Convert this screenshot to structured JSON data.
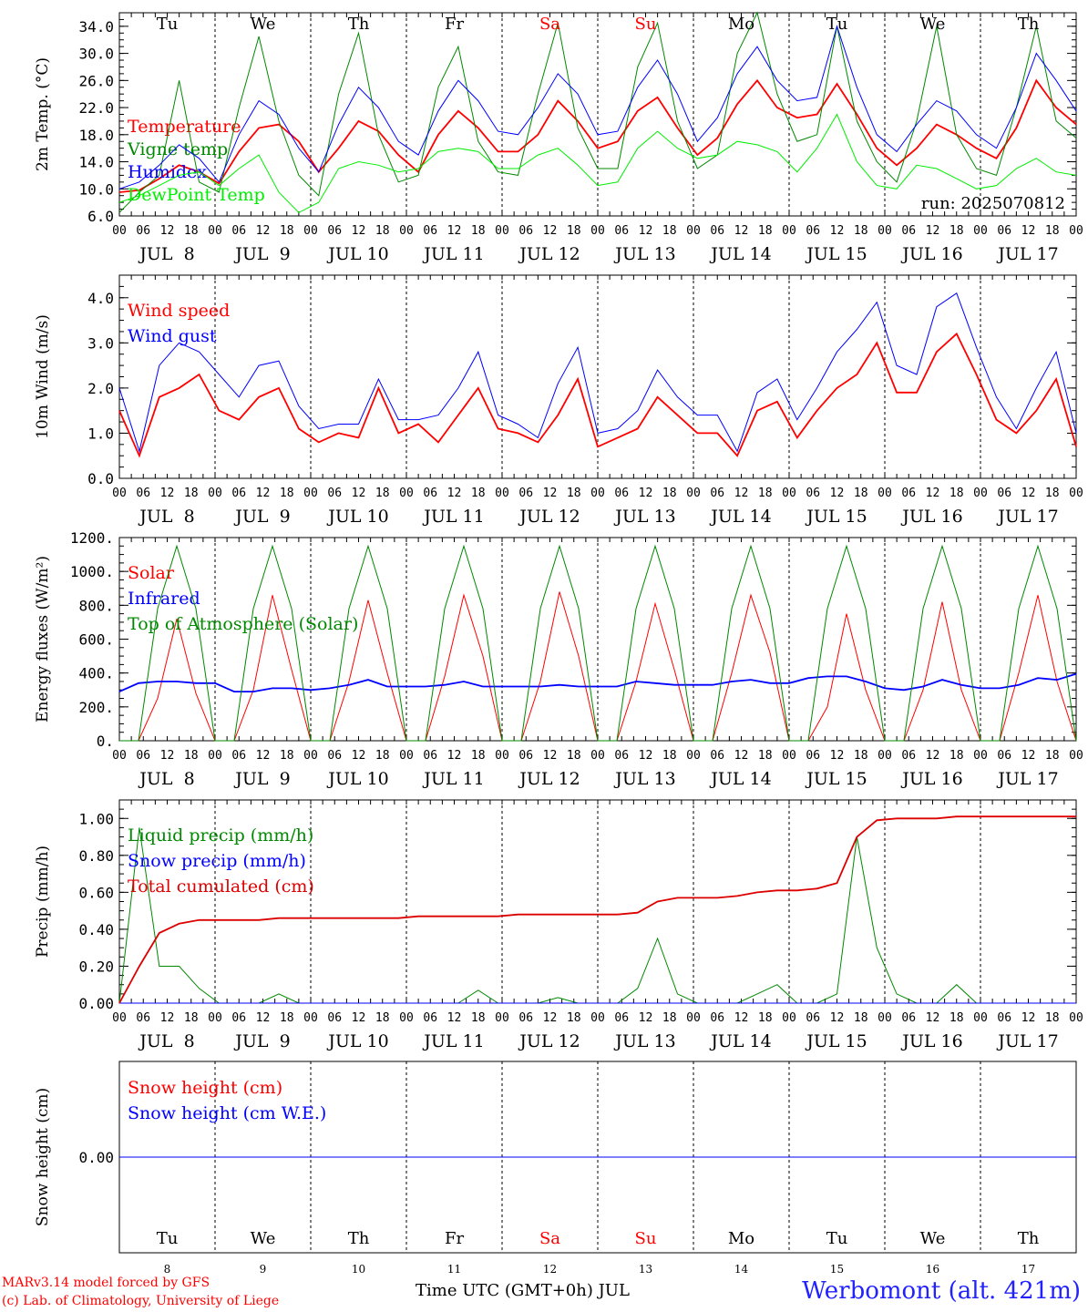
{
  "chart_data": [
    {
      "type": "line",
      "panel": "temperature",
      "ylabel": "2m Temp. (°C)",
      "ylim": [
        6.0,
        36.0
      ],
      "yticks": [
        "6.0",
        "10.0",
        "14.0",
        "18.0",
        "22.0",
        "26.0",
        "30.0",
        "34.0"
      ],
      "run_label": "run: 2025070812",
      "day_labels": [
        "Tu",
        "We",
        "Th",
        "Fr",
        "Sa",
        "Su",
        "Mo",
        "Tu",
        "We",
        "Th"
      ],
      "series": [
        {
          "name": "Temperature",
          "color": "#ff0000",
          "values": [
            9.5,
            9.8,
            11.5,
            13.5,
            12.5,
            10.8,
            15.5,
            19.0,
            19.5,
            17.0,
            12.5,
            16.0,
            20.0,
            18.5,
            15.0,
            12.5,
            18.0,
            21.5,
            19.0,
            15.5,
            15.5,
            18.0,
            23.0,
            20.0,
            16.0,
            17.0,
            21.5,
            23.5,
            19.0,
            15.0,
            17.5,
            22.5,
            26.0,
            22.0,
            20.5,
            21.0,
            25.5,
            21.0,
            16.0,
            13.5,
            16.0,
            19.5,
            18.0,
            16.0,
            14.5,
            19.0,
            26.0,
            22.0,
            19.5
          ]
        },
        {
          "name": "Vigne temp",
          "color": "#008800",
          "values": [
            6.5,
            9.5,
            12.0,
            26.0,
            11.0,
            9.5,
            22.0,
            32.5,
            20.0,
            12.0,
            9.0,
            24.0,
            33.0,
            18.0,
            11.0,
            12.0,
            25.0,
            31.0,
            17.0,
            12.5,
            12.0,
            24.0,
            34.5,
            19.0,
            13.0,
            13.0,
            28.0,
            34.5,
            20.0,
            13.0,
            15.0,
            30.0,
            36.0,
            24.0,
            17.0,
            18.0,
            34.0,
            20.0,
            14.0,
            11.0,
            20.0,
            34.0,
            18.0,
            13.0,
            12.0,
            22.0,
            34.0,
            20.0,
            17.5
          ]
        },
        {
          "name": "Humidex",
          "color": "#0000ff",
          "values": [
            10.0,
            11.0,
            13.5,
            16.5,
            14.5,
            11.0,
            18.0,
            23.0,
            21.0,
            16.0,
            12.5,
            19.5,
            25.0,
            22.0,
            17.0,
            15.0,
            21.5,
            26.0,
            23.0,
            18.5,
            18.0,
            22.0,
            27.0,
            24.0,
            18.0,
            18.5,
            25.0,
            29.0,
            24.0,
            17.0,
            20.5,
            27.0,
            31.0,
            26.0,
            23.0,
            23.5,
            34.0,
            25.0,
            18.0,
            15.5,
            19.5,
            23.0,
            21.5,
            18.0,
            16.0,
            22.0,
            30.0,
            26.0,
            21.5
          ]
        },
        {
          "name": "DewPoint Temp",
          "color": "#00ee00",
          "values": [
            8.0,
            9.0,
            10.5,
            12.0,
            12.5,
            10.5,
            13.0,
            15.0,
            9.5,
            6.5,
            8.0,
            13.0,
            14.0,
            13.5,
            12.5,
            13.0,
            15.5,
            16.0,
            15.5,
            13.0,
            13.0,
            15.0,
            16.0,
            13.5,
            10.5,
            11.0,
            16.0,
            18.5,
            16.0,
            14.5,
            15.0,
            17.0,
            16.5,
            15.5,
            12.5,
            16.0,
            21.0,
            14.0,
            10.5,
            10.0,
            13.5,
            13.0,
            11.5,
            10.0,
            10.5,
            13.0,
            14.5,
            12.5,
            12.0
          ]
        }
      ]
    },
    {
      "type": "line",
      "panel": "wind",
      "ylabel": "10m Wind (m/s)",
      "ylim": [
        0.0,
        4.5
      ],
      "yticks": [
        "0.0",
        "1.0",
        "2.0",
        "3.0",
        "4.0"
      ],
      "series": [
        {
          "name": "Wind speed",
          "color": "#ff0000",
          "values": [
            1.5,
            0.5,
            1.8,
            2.0,
            2.3,
            1.5,
            1.3,
            1.8,
            2.0,
            1.1,
            0.8,
            1.0,
            0.9,
            2.0,
            1.0,
            1.2,
            0.8,
            1.4,
            2.0,
            1.1,
            1.0,
            0.8,
            1.4,
            2.2,
            0.7,
            0.9,
            1.1,
            1.8,
            1.4,
            1.0,
            1.0,
            0.5,
            1.5,
            1.7,
            0.9,
            1.5,
            2.0,
            2.3,
            3.0,
            1.9,
            1.9,
            2.8,
            3.2,
            2.3,
            1.3,
            1.0,
            1.5,
            2.2,
            0.7
          ]
        },
        {
          "name": "Wind gust",
          "color": "#0000ff",
          "values": [
            2.0,
            0.6,
            2.5,
            3.0,
            2.8,
            2.3,
            1.8,
            2.5,
            2.6,
            1.6,
            1.1,
            1.2,
            1.2,
            2.2,
            1.3,
            1.3,
            1.4,
            2.0,
            2.8,
            1.4,
            1.2,
            0.9,
            2.1,
            2.9,
            1.0,
            1.1,
            1.5,
            2.4,
            1.8,
            1.4,
            1.4,
            0.6,
            1.9,
            2.2,
            1.3,
            2.0,
            2.8,
            3.3,
            3.9,
            2.5,
            2.3,
            3.8,
            4.1,
            2.9,
            1.8,
            1.1,
            2.0,
            2.8,
            1.0
          ]
        }
      ]
    },
    {
      "type": "line",
      "panel": "energy",
      "ylabel": "Energy fluxes (W/m²)",
      "ylim": [
        0,
        1200
      ],
      "yticks": [
        "0.",
        "200.",
        "400.",
        "600.",
        "800.",
        "1000.",
        "1200."
      ],
      "series": [
        {
          "name": "Solar",
          "color": "#ff0000",
          "values": [
            0,
            0,
            250,
            720,
            280,
            0,
            0,
            300,
            860,
            420,
            0,
            0,
            350,
            830,
            400,
            0,
            0,
            380,
            860,
            500,
            0,
            0,
            350,
            880,
            500,
            0,
            0,
            350,
            810,
            420,
            0,
            0,
            400,
            860,
            520,
            0,
            0,
            200,
            750,
            300,
            0,
            0,
            300,
            820,
            300,
            0,
            0,
            400,
            860,
            350,
            0
          ]
        },
        {
          "name": "Infrared",
          "color": "#0000ff",
          "values": [
            290,
            340,
            350,
            350,
            340,
            340,
            290,
            290,
            310,
            310,
            300,
            310,
            330,
            360,
            320,
            320,
            320,
            330,
            350,
            320,
            320,
            320,
            320,
            330,
            320,
            320,
            320,
            350,
            340,
            330,
            330,
            330,
            350,
            360,
            340,
            340,
            370,
            380,
            380,
            350,
            310,
            300,
            320,
            360,
            330,
            310,
            310,
            330,
            370,
            360,
            395
          ]
        },
        {
          "name": "Top of Atmosphere (Solar)",
          "color": "#008800",
          "values": [
            0,
            0,
            780,
            1150,
            780,
            0,
            0,
            780,
            1150,
            780,
            0,
            0,
            780,
            1150,
            780,
            0,
            0,
            780,
            1150,
            780,
            0,
            0,
            780,
            1150,
            780,
            0,
            0,
            780,
            1150,
            780,
            0,
            0,
            780,
            1150,
            780,
            0,
            0,
            780,
            1150,
            780,
            0,
            0,
            780,
            1150,
            780,
            0,
            0,
            780,
            1150,
            780,
            0
          ]
        }
      ]
    },
    {
      "type": "line",
      "panel": "precip",
      "ylabel": "Precip (mm/h)",
      "ylim": [
        0.0,
        1.1
      ],
      "yticks": [
        "0.00",
        "0.20",
        "0.40",
        "0.60",
        "0.80",
        "1.00"
      ],
      "series": [
        {
          "name": "Liquid precip (mm/h)",
          "color": "#008800",
          "values": [
            0,
            0.95,
            0.2,
            0.2,
            0.08,
            0,
            0,
            0,
            0.05,
            0,
            0,
            0,
            0,
            0,
            0,
            0,
            0,
            0,
            0.07,
            0,
            0,
            0,
            0.03,
            0,
            0,
            0,
            0.08,
            0.35,
            0.05,
            0,
            0,
            0,
            0.05,
            0.1,
            0,
            0,
            0.05,
            0.9,
            0.3,
            0.05,
            0,
            0,
            0.1,
            0,
            0,
            0,
            0,
            0,
            0
          ]
        },
        {
          "name": "Snow precip (mm/h)",
          "color": "#0000ff",
          "values": [
            0,
            0,
            0,
            0,
            0,
            0,
            0,
            0,
            0,
            0,
            0,
            0,
            0,
            0,
            0,
            0,
            0,
            0,
            0,
            0,
            0,
            0,
            0,
            0,
            0,
            0,
            0,
            0,
            0,
            0,
            0,
            0,
            0,
            0,
            0,
            0,
            0,
            0,
            0,
            0,
            0,
            0,
            0,
            0,
            0,
            0,
            0,
            0,
            0
          ]
        },
        {
          "name": "Total cumulated (cm)",
          "color": "#dd0000",
          "values": [
            0.0,
            0.2,
            0.38,
            0.43,
            0.45,
            0.45,
            0.45,
            0.45,
            0.46,
            0.46,
            0.46,
            0.46,
            0.46,
            0.46,
            0.46,
            0.47,
            0.47,
            0.47,
            0.47,
            0.47,
            0.48,
            0.48,
            0.48,
            0.48,
            0.48,
            0.48,
            0.49,
            0.55,
            0.57,
            0.57,
            0.57,
            0.58,
            0.6,
            0.61,
            0.61,
            0.62,
            0.65,
            0.9,
            0.99,
            1.0,
            1.0,
            1.0,
            1.01,
            1.01,
            1.01,
            1.01,
            1.01,
            1.01,
            1.01
          ]
        }
      ]
    },
    {
      "type": "line",
      "panel": "snow",
      "ylabel": "Snow height (cm)",
      "ylim": [
        -1,
        1
      ],
      "yticks": [
        "0.00"
      ],
      "day_labels": [
        "Tu",
        "We",
        "Th",
        "Fr",
        "Sa",
        "Su",
        "Mo",
        "Tu",
        "We",
        "Th"
      ],
      "day_numbers": [
        "8",
        "9",
        "10",
        "11",
        "12",
        "13",
        "14",
        "15",
        "16",
        "17"
      ],
      "series": [
        {
          "name": "Snow height (cm)",
          "color": "#ff0000",
          "values": [
            0,
            0
          ]
        },
        {
          "name": "Snow height (cm W.E.)",
          "color": "#0000ff",
          "values": [
            0,
            0
          ]
        }
      ]
    }
  ],
  "x_axis": {
    "hour_ticks": [
      "00",
      "06",
      "12",
      "18"
    ],
    "end_tick": "00",
    "date_labels": [
      "JUL  8",
      "JUL  9",
      "JUL 10",
      "JUL 11",
      "JUL 12",
      "JUL 13",
      "JUL 14",
      "JUL 15",
      "JUL 16",
      "JUL 17"
    ],
    "weekend_color": "#ff0000",
    "weekend_days": [
      4,
      5
    ],
    "title": "Time UTC (GMT+0h) JUL"
  },
  "footer": {
    "credit_line1": "MARv3.14 model forced by GFS",
    "credit_line2": "(c) Lab. of Climatology, University of Liege",
    "station": "Werbomont (alt. 421m)"
  }
}
